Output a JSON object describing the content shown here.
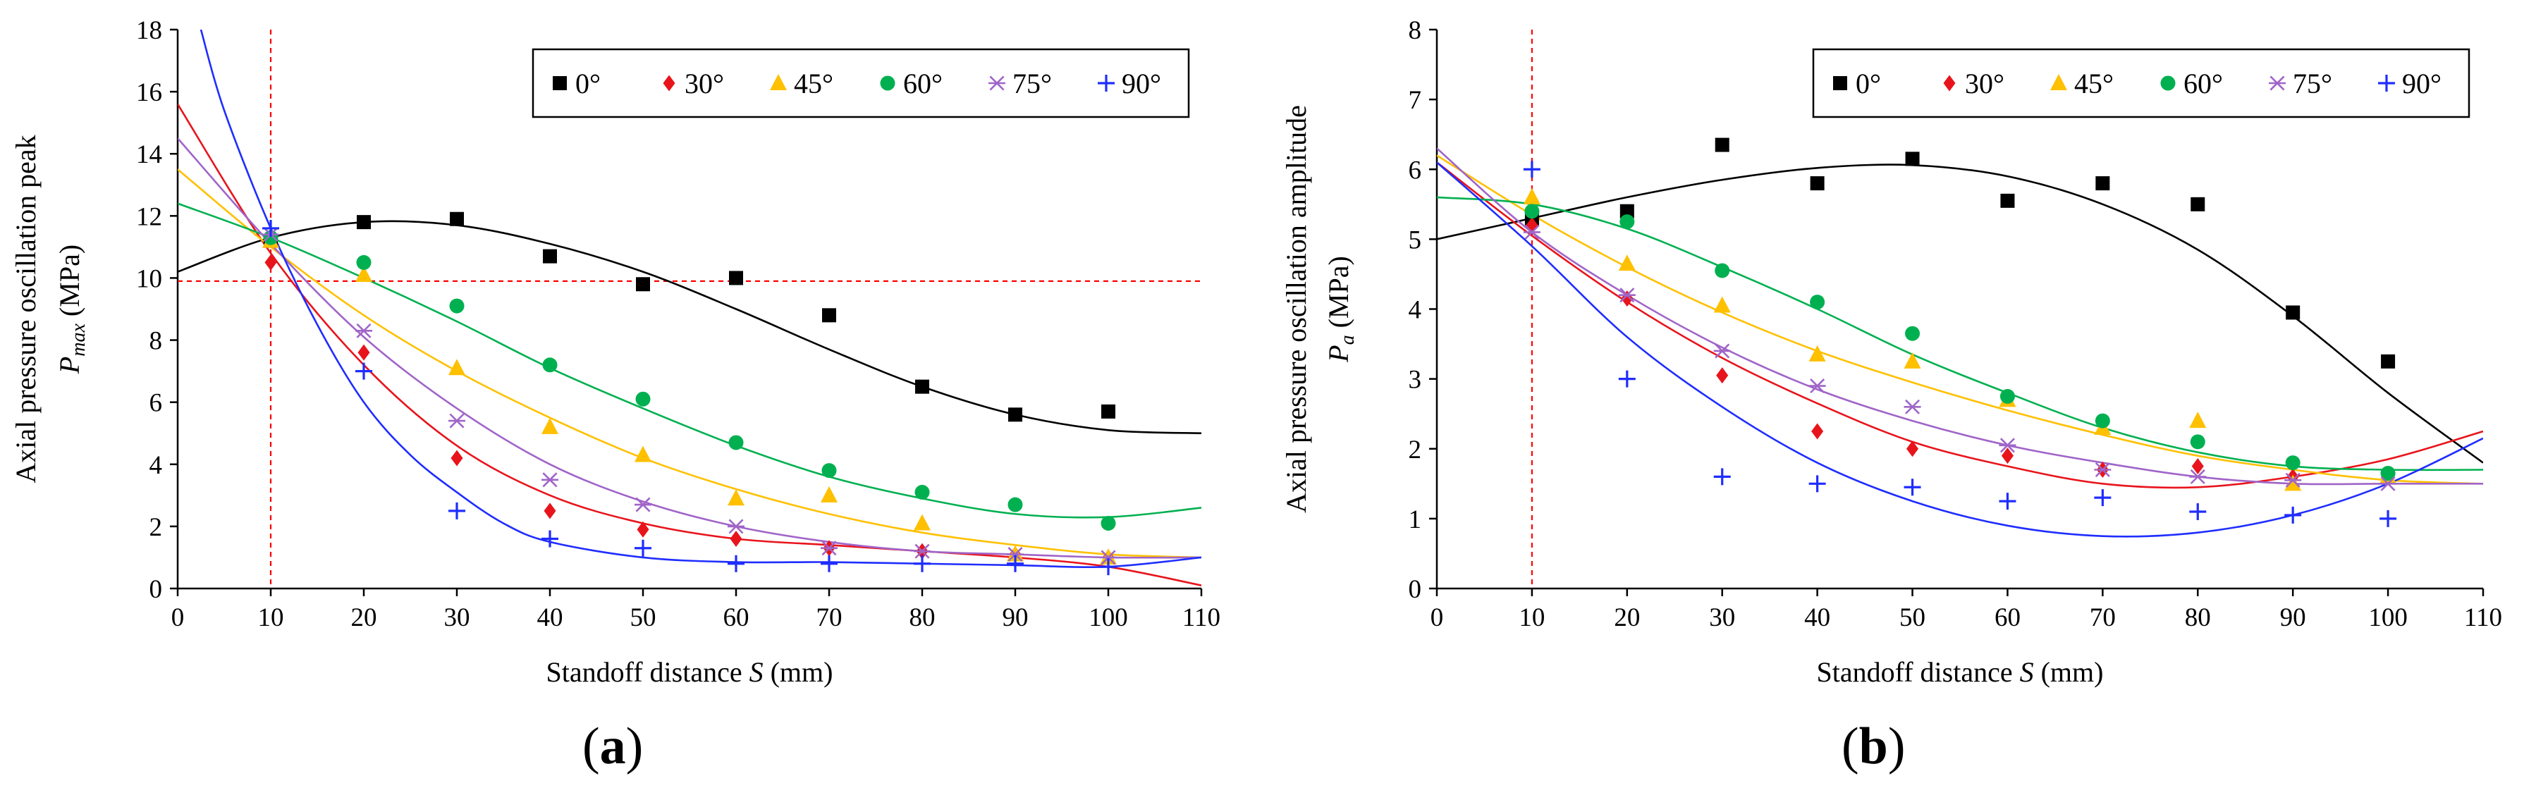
{
  "chart_data": [
    {
      "type": "scatter",
      "panel_label": "a",
      "title": "",
      "xlabel": {
        "pre": "Standoff distance ",
        "var": "S",
        "post": " (mm)"
      },
      "ylabel": {
        "line1": "Axial pressure oscillation peak",
        "sym": "P",
        "sub": "max",
        "unit": " (MPa)"
      },
      "xlim": [
        0,
        110
      ],
      "ylim": [
        0,
        18
      ],
      "xticks": [
        "0",
        "10",
        "20",
        "30",
        "40",
        "50",
        "60",
        "70",
        "80",
        "90",
        "100",
        "110"
      ],
      "yticks": [
        "0",
        "2",
        "4",
        "6",
        "8",
        "10",
        "12",
        "14",
        "16",
        "18"
      ],
      "ref_lines": {
        "vertical_x": 10,
        "horizontal_y": 9.9
      },
      "legend_position": "top-right",
      "series": [
        {
          "name": "0°",
          "color": "#000000",
          "marker": "square",
          "x": [
            10,
            20,
            30,
            40,
            50,
            60,
            70,
            80,
            90,
            100
          ],
          "y": [
            11.2,
            11.8,
            11.9,
            10.7,
            9.8,
            10.0,
            8.8,
            6.5,
            5.6,
            5.7
          ],
          "fit": [
            [
              0,
              10.2
            ],
            [
              10,
              11.3
            ],
            [
              20,
              11.8
            ],
            [
              30,
              11.7
            ],
            [
              40,
              11.1
            ],
            [
              50,
              10.2
            ],
            [
              60,
              9.0
            ],
            [
              70,
              7.7
            ],
            [
              80,
              6.5
            ],
            [
              90,
              5.6
            ],
            [
              100,
              5.1
            ],
            [
              110,
              5.0
            ]
          ]
        },
        {
          "name": "30°",
          "color": "#e8141c",
          "marker": "diamond",
          "x": [
            10,
            20,
            30,
            40,
            50,
            60,
            70,
            80,
            90,
            100
          ],
          "y": [
            10.5,
            7.6,
            4.2,
            2.5,
            1.9,
            1.6,
            1.3,
            1.2,
            1.1,
            1.0
          ],
          "fit": [
            [
              0,
              15.6
            ],
            [
              10,
              10.8
            ],
            [
              20,
              7.2
            ],
            [
              30,
              4.6
            ],
            [
              40,
              3.0
            ],
            [
              50,
              2.1
            ],
            [
              60,
              1.6
            ],
            [
              70,
              1.4
            ],
            [
              80,
              1.2
            ],
            [
              90,
              1.0
            ],
            [
              100,
              0.7
            ],
            [
              110,
              0.1
            ]
          ]
        },
        {
          "name": "45°",
          "color": "#ffc000",
          "marker": "triangle",
          "x": [
            10,
            20,
            30,
            40,
            50,
            60,
            70,
            80,
            90,
            100
          ],
          "y": [
            11.2,
            10.1,
            7.1,
            5.2,
            4.3,
            2.9,
            3.0,
            2.1,
            1.1,
            1.0
          ],
          "fit": [
            [
              0,
              13.5
            ],
            [
              10,
              11.0
            ],
            [
              20,
              8.8
            ],
            [
              30,
              7.0
            ],
            [
              40,
              5.5
            ],
            [
              50,
              4.2
            ],
            [
              60,
              3.2
            ],
            [
              70,
              2.4
            ],
            [
              80,
              1.8
            ],
            [
              90,
              1.4
            ],
            [
              100,
              1.1
            ],
            [
              110,
              1.0
            ]
          ]
        },
        {
          "name": "60°",
          "color": "#00b050",
          "marker": "circle",
          "x": [
            10,
            20,
            30,
            40,
            50,
            60,
            70,
            80,
            90,
            100
          ],
          "y": [
            11.3,
            10.5,
            9.1,
            7.2,
            6.1,
            4.7,
            3.8,
            3.1,
            2.7,
            2.1
          ],
          "fit": [
            [
              0,
              12.4
            ],
            [
              10,
              11.3
            ],
            [
              20,
              10.0
            ],
            [
              30,
              8.6
            ],
            [
              40,
              7.1
            ],
            [
              50,
              5.8
            ],
            [
              60,
              4.6
            ],
            [
              70,
              3.6
            ],
            [
              80,
              2.9
            ],
            [
              90,
              2.4
            ],
            [
              100,
              2.3
            ],
            [
              110,
              2.6
            ]
          ]
        },
        {
          "name": "75°",
          "color": "#a065c8",
          "marker": "asterisk",
          "x": [
            10,
            20,
            30,
            40,
            50,
            60,
            70,
            80,
            90,
            100
          ],
          "y": [
            11.4,
            8.3,
            5.4,
            3.5,
            2.7,
            2.0,
            1.3,
            1.2,
            1.1,
            1.0
          ],
          "fit": [
            [
              0,
              14.5
            ],
            [
              10,
              11.1
            ],
            [
              20,
              8.1
            ],
            [
              30,
              5.8
            ],
            [
              40,
              4.0
            ],
            [
              50,
              2.8
            ],
            [
              60,
              2.0
            ],
            [
              70,
              1.5
            ],
            [
              80,
              1.2
            ],
            [
              90,
              1.1
            ],
            [
              100,
              1.0
            ],
            [
              110,
              1.0
            ]
          ]
        },
        {
          "name": "90°",
          "color": "#1f2dff",
          "marker": "plus",
          "x": [
            10,
            20,
            30,
            40,
            50,
            60,
            70,
            80,
            90,
            100
          ],
          "y": [
            11.6,
            7.0,
            2.5,
            1.6,
            1.3,
            0.8,
            0.8,
            0.8,
            0.8,
            0.7
          ],
          "fit": [
            [
              2.5,
              18
            ],
            [
              5,
              15.4
            ],
            [
              10,
              11.6
            ],
            [
              15,
              8.5
            ],
            [
              20,
              6.0
            ],
            [
              25,
              4.3
            ],
            [
              30,
              3.1
            ],
            [
              35,
              2.1
            ],
            [
              40,
              1.5
            ],
            [
              50,
              1.0
            ],
            [
              60,
              0.85
            ],
            [
              70,
              0.85
            ],
            [
              80,
              0.8
            ],
            [
              90,
              0.75
            ],
            [
              100,
              0.7
            ],
            [
              110,
              1.0
            ]
          ]
        }
      ]
    },
    {
      "type": "scatter",
      "panel_label": "b",
      "title": "",
      "xlabel": {
        "pre": "Standoff distance ",
        "var": "S",
        "post": " (mm)"
      },
      "ylabel": {
        "line1": "Axial pressure oscillation  amplitude",
        "sym": "P",
        "sub": "a",
        "unit": " (MPa)"
      },
      "xlim": [
        0,
        110
      ],
      "ylim": [
        0,
        8
      ],
      "xticks": [
        "0",
        "10",
        "20",
        "30",
        "40",
        "50",
        "60",
        "70",
        "80",
        "90",
        "100",
        "110"
      ],
      "yticks": [
        "0",
        "1",
        "2",
        "3",
        "4",
        "5",
        "6",
        "7",
        "8"
      ],
      "ref_lines": {
        "vertical_x": 10
      },
      "legend_position": "top-right",
      "series": [
        {
          "name": "0°",
          "color": "#000000",
          "marker": "square",
          "x": [
            10,
            20,
            30,
            40,
            50,
            60,
            70,
            80,
            90,
            100
          ],
          "y": [
            5.3,
            5.4,
            6.35,
            5.8,
            6.15,
            5.55,
            5.8,
            5.5,
            3.95,
            3.25
          ],
          "fit": [
            [
              0,
              5.0
            ],
            [
              10,
              5.3
            ],
            [
              20,
              5.6
            ],
            [
              30,
              5.85
            ],
            [
              40,
              6.02
            ],
            [
              50,
              6.06
            ],
            [
              60,
              5.9
            ],
            [
              70,
              5.5
            ],
            [
              80,
              4.85
            ],
            [
              90,
              3.9
            ],
            [
              100,
              2.8
            ],
            [
              110,
              1.8
            ]
          ]
        },
        {
          "name": "30°",
          "color": "#e8141c",
          "marker": "diamond",
          "x": [
            10,
            20,
            30,
            40,
            50,
            60,
            70,
            80,
            90,
            100
          ],
          "y": [
            5.2,
            4.15,
            3.05,
            2.25,
            2.0,
            1.9,
            1.7,
            1.75,
            1.6,
            1.6
          ],
          "fit": [
            [
              0,
              6.1
            ],
            [
              10,
              5.05
            ],
            [
              20,
              4.1
            ],
            [
              30,
              3.3
            ],
            [
              40,
              2.65
            ],
            [
              50,
              2.1
            ],
            [
              60,
              1.75
            ],
            [
              70,
              1.5
            ],
            [
              80,
              1.45
            ],
            [
              90,
              1.6
            ],
            [
              100,
              1.85
            ],
            [
              110,
              2.25
            ]
          ]
        },
        {
          "name": "45°",
          "color": "#ffc000",
          "marker": "triangle",
          "x": [
            10,
            20,
            30,
            40,
            50,
            60,
            70,
            80,
            90,
            100
          ],
          "y": [
            5.6,
            4.65,
            4.05,
            3.35,
            3.25,
            2.7,
            2.3,
            2.4,
            1.5,
            1.6
          ],
          "fit": [
            [
              0,
              6.2
            ],
            [
              10,
              5.35
            ],
            [
              20,
              4.6
            ],
            [
              30,
              3.95
            ],
            [
              40,
              3.4
            ],
            [
              50,
              2.95
            ],
            [
              60,
              2.55
            ],
            [
              70,
              2.2
            ],
            [
              80,
              1.9
            ],
            [
              90,
              1.7
            ],
            [
              100,
              1.55
            ],
            [
              110,
              1.5
            ]
          ]
        },
        {
          "name": "60°",
          "color": "#00b050",
          "marker": "circle",
          "x": [
            10,
            20,
            30,
            40,
            50,
            60,
            70,
            80,
            90,
            100
          ],
          "y": [
            5.4,
            5.25,
            4.55,
            4.1,
            3.65,
            2.75,
            2.4,
            2.1,
            1.8,
            1.65
          ],
          "fit": [
            [
              0,
              5.6
            ],
            [
              10,
              5.5
            ],
            [
              20,
              5.15
            ],
            [
              30,
              4.6
            ],
            [
              40,
              4.0
            ],
            [
              50,
              3.35
            ],
            [
              60,
              2.8
            ],
            [
              70,
              2.3
            ],
            [
              80,
              1.95
            ],
            [
              90,
              1.75
            ],
            [
              100,
              1.7
            ],
            [
              110,
              1.7
            ]
          ]
        },
        {
          "name": "75°",
          "color": "#a065c8",
          "marker": "asterisk",
          "x": [
            10,
            20,
            30,
            40,
            50,
            60,
            70,
            80,
            90,
            100
          ],
          "y": [
            5.1,
            4.2,
            3.4,
            2.9,
            2.6,
            2.05,
            1.7,
            1.6,
            1.55,
            1.5
          ],
          "fit": [
            [
              0,
              6.3
            ],
            [
              10,
              5.1
            ],
            [
              20,
              4.2
            ],
            [
              30,
              3.45
            ],
            [
              40,
              2.85
            ],
            [
              50,
              2.4
            ],
            [
              60,
              2.05
            ],
            [
              70,
              1.8
            ],
            [
              80,
              1.6
            ],
            [
              90,
              1.5
            ],
            [
              100,
              1.5
            ],
            [
              110,
              1.5
            ]
          ]
        },
        {
          "name": "90°",
          "color": "#1f2dff",
          "marker": "plus",
          "x": [
            10,
            20,
            30,
            40,
            50,
            60,
            70,
            80,
            90,
            100
          ],
          "y": [
            6.0,
            3.0,
            1.6,
            1.5,
            1.45,
            1.25,
            1.3,
            1.1,
            1.05,
            1.0
          ],
          "fit": [
            [
              0,
              6.1
            ],
            [
              10,
              4.9
            ],
            [
              20,
              3.6
            ],
            [
              30,
              2.6
            ],
            [
              40,
              1.8
            ],
            [
              50,
              1.25
            ],
            [
              60,
              0.9
            ],
            [
              70,
              0.75
            ],
            [
              80,
              0.8
            ],
            [
              90,
              1.05
            ],
            [
              100,
              1.5
            ],
            [
              110,
              2.15
            ]
          ]
        }
      ]
    }
  ]
}
